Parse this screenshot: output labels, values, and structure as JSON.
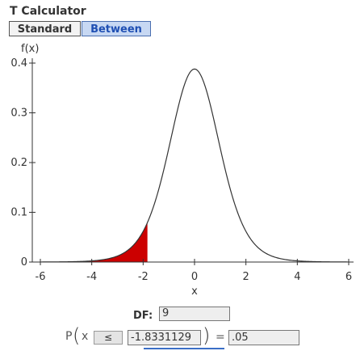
{
  "app": {
    "title": "T Calculator"
  },
  "tabs": [
    {
      "label": "Standard",
      "active": false
    },
    {
      "label": "Between",
      "active": true
    }
  ],
  "chart_data": {
    "type": "area",
    "distribution": "Student t",
    "df": 9,
    "ylabel": "f(x)",
    "xlabel": "x",
    "xlim": [
      -6,
      6
    ],
    "ylim": [
      0,
      0.4
    ],
    "x_ticks": [
      -6,
      -4,
      -2,
      0,
      2,
      4,
      6
    ],
    "y_ticks": [
      0,
      0.1,
      0.2,
      0.3,
      0.4
    ],
    "y_tick_labels": [
      "0",
      "0.1",
      "0.2",
      "0.3",
      "0.4"
    ],
    "shaded_region": {
      "from": -6,
      "to": -1.8331129,
      "color": "#cc0000"
    },
    "grid": false
  },
  "form": {
    "df_label": "DF:",
    "df_value": "9",
    "p_label": "P",
    "paren_open": "(",
    "x_var": "x",
    "operator": "≤",
    "x_value": "-1.8331129",
    "paren_close": ")",
    "equals": "=",
    "p_value": ".05"
  }
}
